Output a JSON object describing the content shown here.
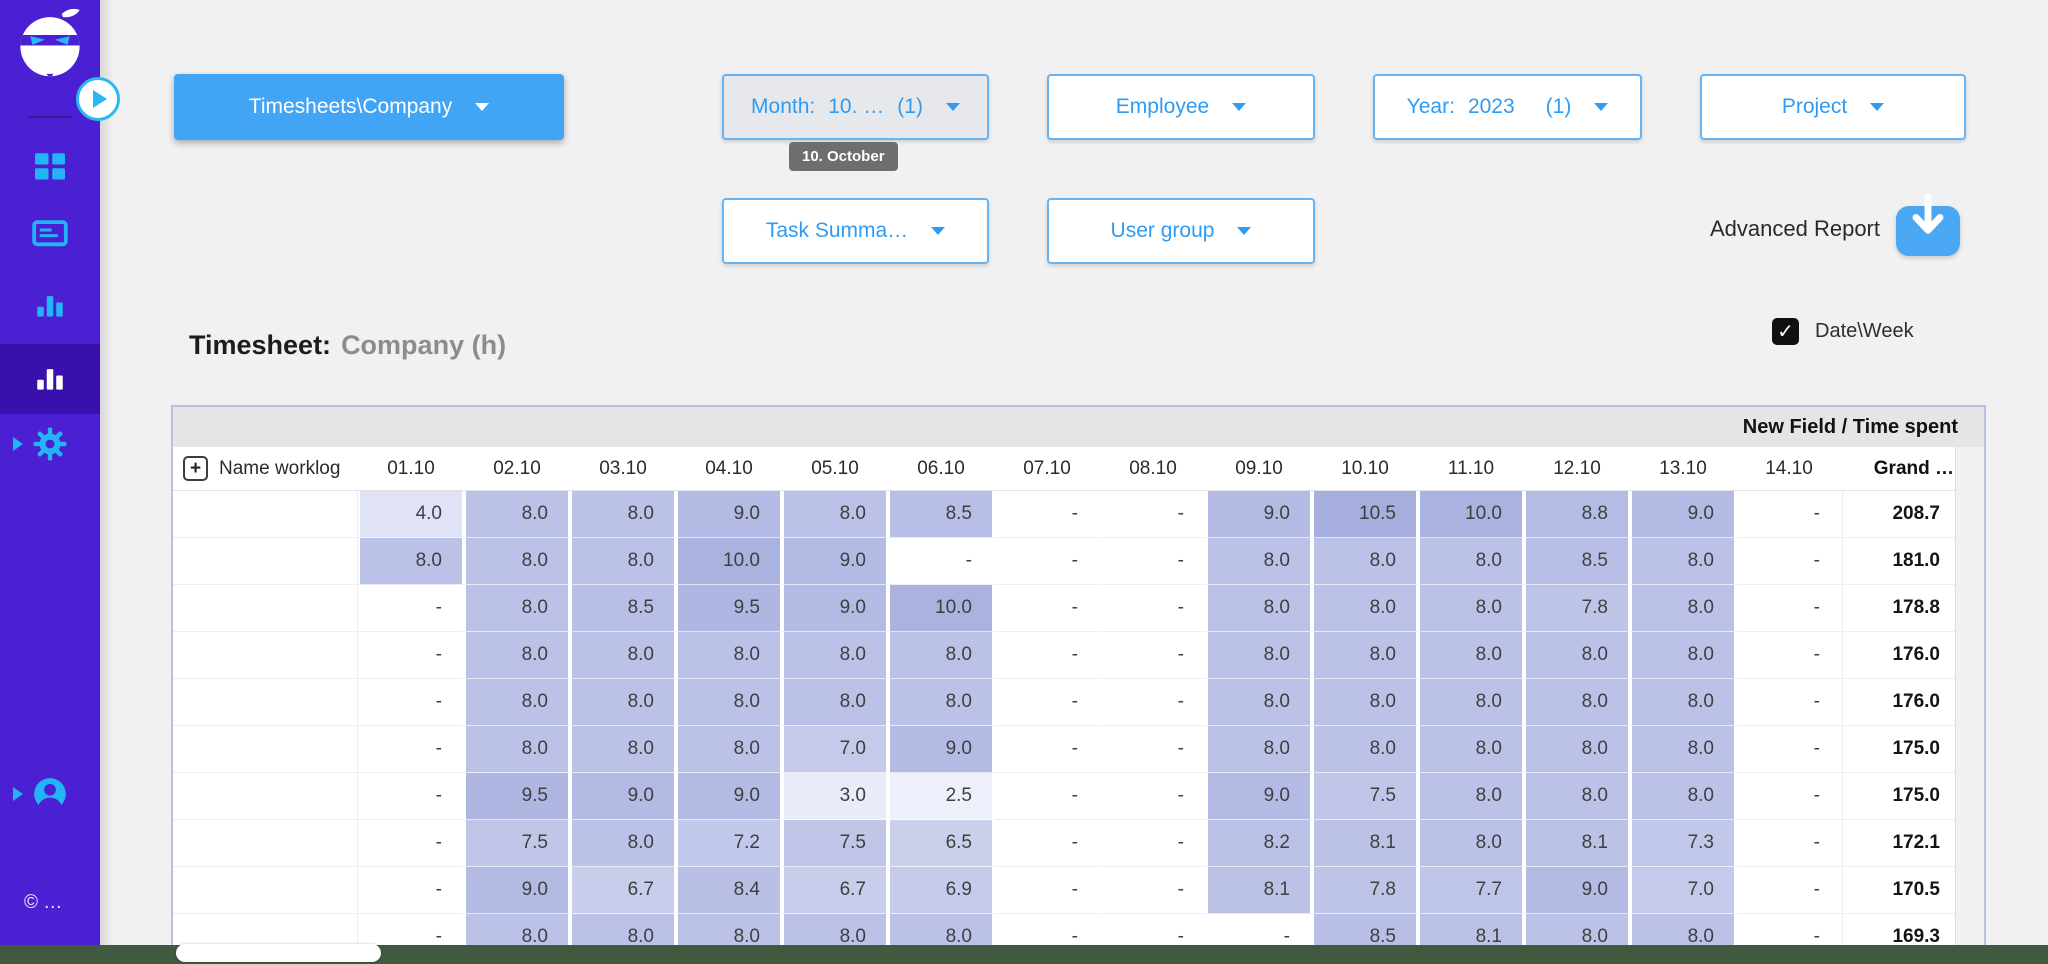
{
  "sidebar": {
    "copyright": "© …",
    "active_item": "timesheet-reports"
  },
  "filters": {
    "report_selector": {
      "label": "Timesheets\\Company"
    },
    "month": {
      "prefix": "Month:",
      "value": "10. …",
      "count": "(1)",
      "tooltip": "10. October"
    },
    "employee": {
      "label": "Employee"
    },
    "year": {
      "prefix": "Year:",
      "value": "2023",
      "count": "(1)"
    },
    "project": {
      "label": "Project"
    },
    "task_summary": {
      "label": "Task Summa…"
    },
    "user_group": {
      "label": "User group"
    }
  },
  "advanced_report": {
    "label": "Advanced Report"
  },
  "heading": {
    "prefix": "Timesheet:",
    "value": "Company (h)"
  },
  "date_week_toggle": {
    "label": "Date\\Week",
    "checked": true
  },
  "table": {
    "band_label": "New Field / Time spent",
    "name_header": "Name worklog",
    "date_headers": [
      "01.10",
      "02.10",
      "03.10",
      "04.10",
      "05.10",
      "06.10",
      "07.10",
      "08.10",
      "09.10",
      "10.10",
      "11.10",
      "12.10",
      "13.10",
      "14.10"
    ],
    "grand_header": "Grand …",
    "empty_value": "-",
    "rows": [
      {
        "name": "",
        "values": [
          4.0,
          8.0,
          8.0,
          9.0,
          8.0,
          8.5,
          null,
          null,
          9.0,
          10.5,
          10.0,
          8.8,
          9.0,
          null
        ],
        "total": 208.7
      },
      {
        "name": "",
        "values": [
          8.0,
          8.0,
          8.0,
          10.0,
          9.0,
          null,
          null,
          null,
          8.0,
          8.0,
          8.0,
          8.5,
          8.0,
          null
        ],
        "total": 181.0
      },
      {
        "name": "",
        "values": [
          null,
          8.0,
          8.5,
          9.5,
          9.0,
          10.0,
          null,
          null,
          8.0,
          8.0,
          8.0,
          7.8,
          8.0,
          null
        ],
        "total": 178.8
      },
      {
        "name": "",
        "values": [
          null,
          8.0,
          8.0,
          8.0,
          8.0,
          8.0,
          null,
          null,
          8.0,
          8.0,
          8.0,
          8.0,
          8.0,
          null
        ],
        "total": 176.0
      },
      {
        "name": "",
        "values": [
          null,
          8.0,
          8.0,
          8.0,
          8.0,
          8.0,
          null,
          null,
          8.0,
          8.0,
          8.0,
          8.0,
          8.0,
          null
        ],
        "total": 176.0
      },
      {
        "name": "",
        "values": [
          null,
          8.0,
          8.0,
          8.0,
          7.0,
          9.0,
          null,
          null,
          8.0,
          8.0,
          8.0,
          8.0,
          8.0,
          null
        ],
        "total": 175.0
      },
      {
        "name": "",
        "values": [
          null,
          9.5,
          9.0,
          9.0,
          3.0,
          2.5,
          null,
          null,
          9.0,
          7.5,
          8.0,
          8.0,
          8.0,
          null
        ],
        "total": 175.0
      },
      {
        "name": "",
        "values": [
          null,
          7.5,
          8.0,
          7.2,
          7.5,
          6.5,
          null,
          null,
          8.2,
          8.1,
          8.0,
          8.1,
          7.3,
          null
        ],
        "total": 172.1
      },
      {
        "name": "",
        "values": [
          null,
          9.0,
          6.7,
          8.4,
          6.7,
          6.9,
          null,
          null,
          8.1,
          7.8,
          7.7,
          9.0,
          7.0,
          null
        ],
        "total": 170.5
      },
      {
        "name": "",
        "values": [
          null,
          8.0,
          8.0,
          8.0,
          8.0,
          8.0,
          null,
          null,
          null,
          8.5,
          8.1,
          8.0,
          8.0,
          null
        ],
        "total": 169.3
      }
    ]
  },
  "heatmap": {
    "min_value": 2.5,
    "max_value": 10.5,
    "low": "#edeffa",
    "high": "#a6aede"
  },
  "colors": {
    "accent_blue": "#42a5f5",
    "sidebar_purple": "#4a20d2",
    "icon_cyan": "#22b4f4",
    "footer_strip": "#40593f"
  }
}
